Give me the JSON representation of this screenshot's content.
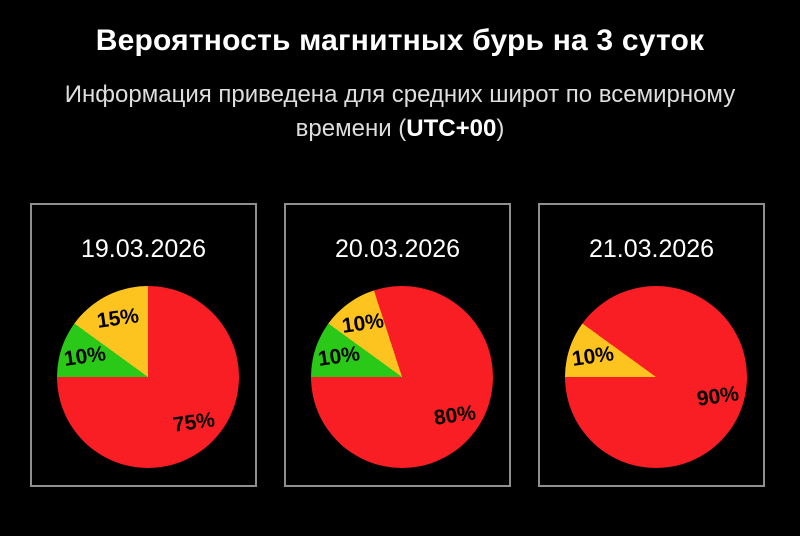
{
  "header": {
    "title": "Вероятность магнитных бурь на 3 суток",
    "subtitle_line1": "Информация приведена для средних широт по всемирному",
    "subtitle_line2_pre": "времени (",
    "subtitle_line2_bold": "UTC+00",
    "subtitle_line2_post": ")"
  },
  "colors": {
    "background": "#000000",
    "panel_border": "#8f8f8f",
    "title_text": "#ffffff",
    "subtitle_text": "#dedede",
    "date_text": "#ffffff",
    "slice_label_text": "#000000",
    "slice_red": "#f91e23",
    "slice_yellow": "#fdc31f",
    "slice_green": "#2bc917"
  },
  "chart_data": [
    {
      "type": "pie",
      "title": "19.03.2026",
      "start_angle_deg": 270,
      "legend_position": "none",
      "slices": [
        {
          "name": "green-probability",
          "value": 10,
          "label": "10%",
          "color_key": "slice_green"
        },
        {
          "name": "yellow-probability",
          "value": 15,
          "label": "15%",
          "color_key": "slice_yellow"
        },
        {
          "name": "red-probability",
          "value": 75,
          "label": "75%",
          "color_key": "slice_red"
        }
      ]
    },
    {
      "type": "pie",
      "title": "20.03.2026",
      "start_angle_deg": 270,
      "legend_position": "none",
      "slices": [
        {
          "name": "green-probability",
          "value": 10,
          "label": "10%",
          "color_key": "slice_green"
        },
        {
          "name": "yellow-probability",
          "value": 10,
          "label": "10%",
          "color_key": "slice_yellow"
        },
        {
          "name": "red-probability",
          "value": 80,
          "label": "80%",
          "color_key": "slice_red"
        }
      ]
    },
    {
      "type": "pie",
      "title": "21.03.2026",
      "start_angle_deg": 270,
      "legend_position": "none",
      "slices": [
        {
          "name": "yellow-probability",
          "value": 10,
          "label": "10%",
          "color_key": "slice_yellow"
        },
        {
          "name": "red-probability",
          "value": 90,
          "label": "90%",
          "color_key": "slice_red"
        }
      ]
    }
  ]
}
